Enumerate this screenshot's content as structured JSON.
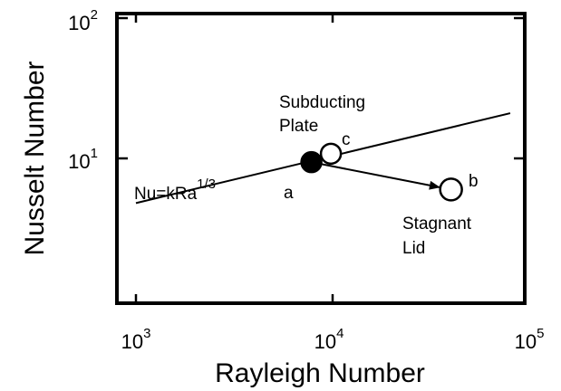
{
  "chart_data": {
    "type": "scatter",
    "xlabel": "Rayleigh Number",
    "ylabel": "Nusselt Number",
    "xscale": "log",
    "yscale": "log",
    "xlim": [
      1000,
      100000
    ],
    "ylim": [
      1,
      100
    ],
    "x_ticks": [
      {
        "base": "10",
        "exp": "3",
        "value": 1000
      },
      {
        "base": "10",
        "exp": "4",
        "value": 10000
      },
      {
        "base": "10",
        "exp": "5",
        "value": 100000
      }
    ],
    "y_ticks": [
      {
        "base": "10",
        "exp": "1",
        "value": 10
      },
      {
        "base": "10",
        "exp": "2",
        "value": 100
      }
    ],
    "fit_line": {
      "label_main": "Nu=kRa",
      "label_exp": "1/3",
      "x": [
        1000,
        80000
      ],
      "y": [
        4.8,
        21
      ]
    },
    "points": [
      {
        "label": "a",
        "x": 7800,
        "y": 9.4,
        "filled": true
      },
      {
        "label": "c",
        "x": 9800,
        "y": 10.8,
        "filled": false
      },
      {
        "label": "b",
        "x": 40000,
        "y": 6.0,
        "filled": false
      }
    ],
    "arrow": {
      "from": "a",
      "to": "b"
    },
    "annotations": {
      "subducting_line1": "Subducting",
      "subducting_line2": "Plate",
      "stagnant_line1": "Stagnant",
      "stagnant_line2": "Lid"
    }
  }
}
